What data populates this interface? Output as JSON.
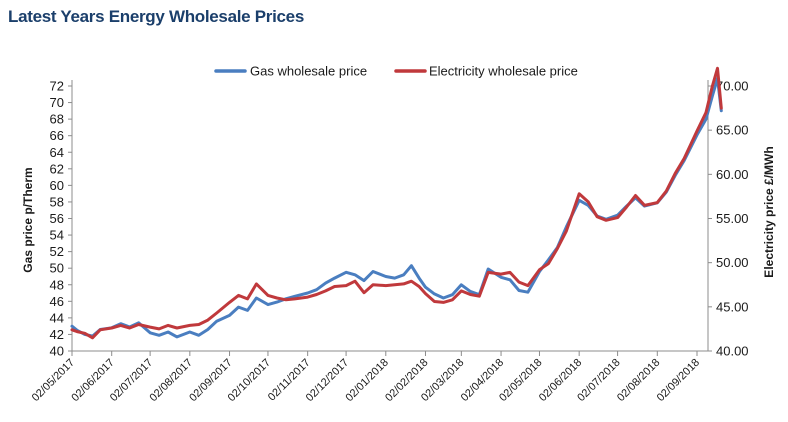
{
  "page_title": "Latest Years Energy Wholesale Prices",
  "colors": {
    "gas": "#4a7ec0",
    "electricity": "#c0393c",
    "title": "#1b3f6b",
    "axis": "#8c8c8c",
    "text": "#1a1a1a"
  },
  "chart_data": {
    "type": "line",
    "title": "Latest Years Energy Wholesale Prices",
    "grid": false,
    "legend_position": "top-center",
    "y_left": {
      "label": "Gas price p/Therm",
      "min": 40,
      "max": 72,
      "step": 2,
      "ticks": [
        "40",
        "42",
        "44",
        "46",
        "48",
        "50",
        "52",
        "54",
        "56",
        "58",
        "60",
        "62",
        "64",
        "66",
        "68",
        "70",
        "72"
      ]
    },
    "y_right": {
      "label": "Electricity price £/MWh",
      "min": 40,
      "max": 70,
      "step": 5,
      "ticks": [
        "40.00",
        "45.00",
        "50.00",
        "55.00",
        "60.00",
        "65.00",
        "70.00"
      ]
    },
    "x_ticks": [
      "02/05/2017",
      "02/06/2017",
      "02/07/2017",
      "02/08/2017",
      "02/09/2017",
      "02/10/2017",
      "02/11/2017",
      "02/12/2017",
      "02/01/2018",
      "02/02/2018",
      "02/03/2018",
      "02/04/2018",
      "02/05/2018",
      "02/06/2018",
      "02/07/2018",
      "02/08/2018",
      "02/09/2018"
    ],
    "x_range": [
      "02/05/2017",
      "21/09/2018"
    ],
    "series": [
      {
        "name": "Gas wholesale price",
        "axis": "left",
        "color": "#4a7ec0",
        "points": [
          [
            "02/05/2017",
            43.0
          ],
          [
            "06/05/2017",
            42.5
          ],
          [
            "12/05/2017",
            42.0
          ],
          [
            "18/05/2017",
            41.8
          ],
          [
            "24/05/2017",
            42.6
          ],
          [
            "02/06/2017",
            42.8
          ],
          [
            "09/06/2017",
            43.3
          ],
          [
            "16/06/2017",
            42.9
          ],
          [
            "23/06/2017",
            43.4
          ],
          [
            "02/07/2017",
            42.2
          ],
          [
            "09/07/2017",
            41.9
          ],
          [
            "16/07/2017",
            42.3
          ],
          [
            "23/07/2017",
            41.7
          ],
          [
            "02/08/2017",
            42.3
          ],
          [
            "09/08/2017",
            41.9
          ],
          [
            "16/08/2017",
            42.6
          ],
          [
            "23/08/2017",
            43.6
          ],
          [
            "02/09/2017",
            44.3
          ],
          [
            "09/09/2017",
            45.3
          ],
          [
            "16/09/2017",
            44.9
          ],
          [
            "23/09/2017",
            46.4
          ],
          [
            "02/10/2017",
            45.6
          ],
          [
            "09/10/2017",
            45.9
          ],
          [
            "16/10/2017",
            46.3
          ],
          [
            "23/10/2017",
            46.6
          ],
          [
            "02/11/2017",
            47.0
          ],
          [
            "09/11/2017",
            47.4
          ],
          [
            "16/11/2017",
            48.2
          ],
          [
            "23/11/2017",
            48.8
          ],
          [
            "02/12/2017",
            49.5
          ],
          [
            "09/12/2017",
            49.2
          ],
          [
            "16/12/2017",
            48.5
          ],
          [
            "23/12/2017",
            49.6
          ],
          [
            "02/01/2018",
            49.0
          ],
          [
            "09/01/2018",
            48.8
          ],
          [
            "16/01/2018",
            49.2
          ],
          [
            "22/01/2018",
            50.3
          ],
          [
            "28/01/2018",
            48.8
          ],
          [
            "02/02/2018",
            47.7
          ],
          [
            "09/02/2018",
            46.9
          ],
          [
            "16/02/2018",
            46.4
          ],
          [
            "23/02/2018",
            46.8
          ],
          [
            "02/03/2018",
            48.0
          ],
          [
            "09/03/2018",
            47.2
          ],
          [
            "16/03/2018",
            46.8
          ],
          [
            "23/03/2018",
            49.9
          ],
          [
            "02/04/2018",
            48.9
          ],
          [
            "09/04/2018",
            48.6
          ],
          [
            "16/04/2018",
            47.3
          ],
          [
            "23/04/2018",
            47.1
          ],
          [
            "02/05/2018",
            49.6
          ],
          [
            "09/05/2018",
            51.0
          ],
          [
            "16/05/2018",
            52.5
          ],
          [
            "23/05/2018",
            55.0
          ],
          [
            "02/06/2018",
            58.2
          ],
          [
            "09/06/2018",
            57.6
          ],
          [
            "16/06/2018",
            56.3
          ],
          [
            "23/06/2018",
            55.9
          ],
          [
            "02/07/2018",
            56.4
          ],
          [
            "09/07/2018",
            57.5
          ],
          [
            "16/07/2018",
            58.5
          ],
          [
            "23/07/2018",
            57.5
          ],
          [
            "02/08/2018",
            57.9
          ],
          [
            "09/08/2018",
            59.2
          ],
          [
            "16/08/2018",
            61.2
          ],
          [
            "23/08/2018",
            63.0
          ],
          [
            "02/09/2018",
            66.1
          ],
          [
            "09/09/2018",
            68.0
          ],
          [
            "14/09/2018",
            70.8
          ],
          [
            "18/09/2018",
            72.9
          ],
          [
            "21/09/2018",
            69.0
          ]
        ]
      },
      {
        "name": "Electricity wholesale price",
        "axis": "right",
        "color": "#c0393c",
        "points": [
          [
            "02/05/2017",
            42.4
          ],
          [
            "06/05/2017",
            42.2
          ],
          [
            "12/05/2017",
            42.0
          ],
          [
            "18/05/2017",
            41.5
          ],
          [
            "24/05/2017",
            42.4
          ],
          [
            "02/06/2017",
            42.6
          ],
          [
            "09/06/2017",
            42.9
          ],
          [
            "16/06/2017",
            42.6
          ],
          [
            "23/06/2017",
            43.0
          ],
          [
            "02/07/2017",
            42.7
          ],
          [
            "09/07/2017",
            42.5
          ],
          [
            "16/07/2017",
            42.9
          ],
          [
            "23/07/2017",
            42.6
          ],
          [
            "02/08/2017",
            42.9
          ],
          [
            "09/08/2017",
            43.0
          ],
          [
            "16/08/2017",
            43.5
          ],
          [
            "23/08/2017",
            44.3
          ],
          [
            "02/09/2017",
            45.5
          ],
          [
            "09/09/2017",
            46.3
          ],
          [
            "16/09/2017",
            45.9
          ],
          [
            "23/09/2017",
            47.6
          ],
          [
            "02/10/2017",
            46.3
          ],
          [
            "09/10/2017",
            46.0
          ],
          [
            "16/10/2017",
            45.8
          ],
          [
            "23/10/2017",
            45.9
          ],
          [
            "02/11/2017",
            46.1
          ],
          [
            "09/11/2017",
            46.4
          ],
          [
            "16/11/2017",
            46.8
          ],
          [
            "23/11/2017",
            47.3
          ],
          [
            "02/12/2017",
            47.4
          ],
          [
            "09/12/2017",
            47.9
          ],
          [
            "16/12/2017",
            46.6
          ],
          [
            "23/12/2017",
            47.5
          ],
          [
            "02/01/2018",
            47.4
          ],
          [
            "09/01/2018",
            47.5
          ],
          [
            "16/01/2018",
            47.6
          ],
          [
            "22/01/2018",
            47.9
          ],
          [
            "28/01/2018",
            47.3
          ],
          [
            "02/02/2018",
            46.5
          ],
          [
            "09/02/2018",
            45.6
          ],
          [
            "16/02/2018",
            45.5
          ],
          [
            "23/02/2018",
            45.8
          ],
          [
            "02/03/2018",
            46.8
          ],
          [
            "09/03/2018",
            46.4
          ],
          [
            "16/03/2018",
            46.2
          ],
          [
            "23/03/2018",
            48.9
          ],
          [
            "02/04/2018",
            48.7
          ],
          [
            "09/04/2018",
            48.9
          ],
          [
            "16/04/2018",
            47.8
          ],
          [
            "23/04/2018",
            47.4
          ],
          [
            "02/05/2018",
            49.2
          ],
          [
            "09/05/2018",
            49.9
          ],
          [
            "16/05/2018",
            51.6
          ],
          [
            "23/05/2018",
            53.6
          ],
          [
            "02/06/2018",
            57.8
          ],
          [
            "09/06/2018",
            56.9
          ],
          [
            "16/06/2018",
            55.2
          ],
          [
            "23/06/2018",
            54.8
          ],
          [
            "02/07/2018",
            55.1
          ],
          [
            "09/07/2018",
            56.3
          ],
          [
            "16/07/2018",
            57.6
          ],
          [
            "23/07/2018",
            56.5
          ],
          [
            "02/08/2018",
            56.8
          ],
          [
            "09/08/2018",
            58.1
          ],
          [
            "16/08/2018",
            60.1
          ],
          [
            "23/08/2018",
            61.8
          ],
          [
            "02/09/2018",
            64.9
          ],
          [
            "09/09/2018",
            67.0
          ],
          [
            "14/09/2018",
            70.0
          ],
          [
            "18/09/2018",
            72.0
          ],
          [
            "21/09/2018",
            67.5
          ]
        ]
      }
    ]
  }
}
